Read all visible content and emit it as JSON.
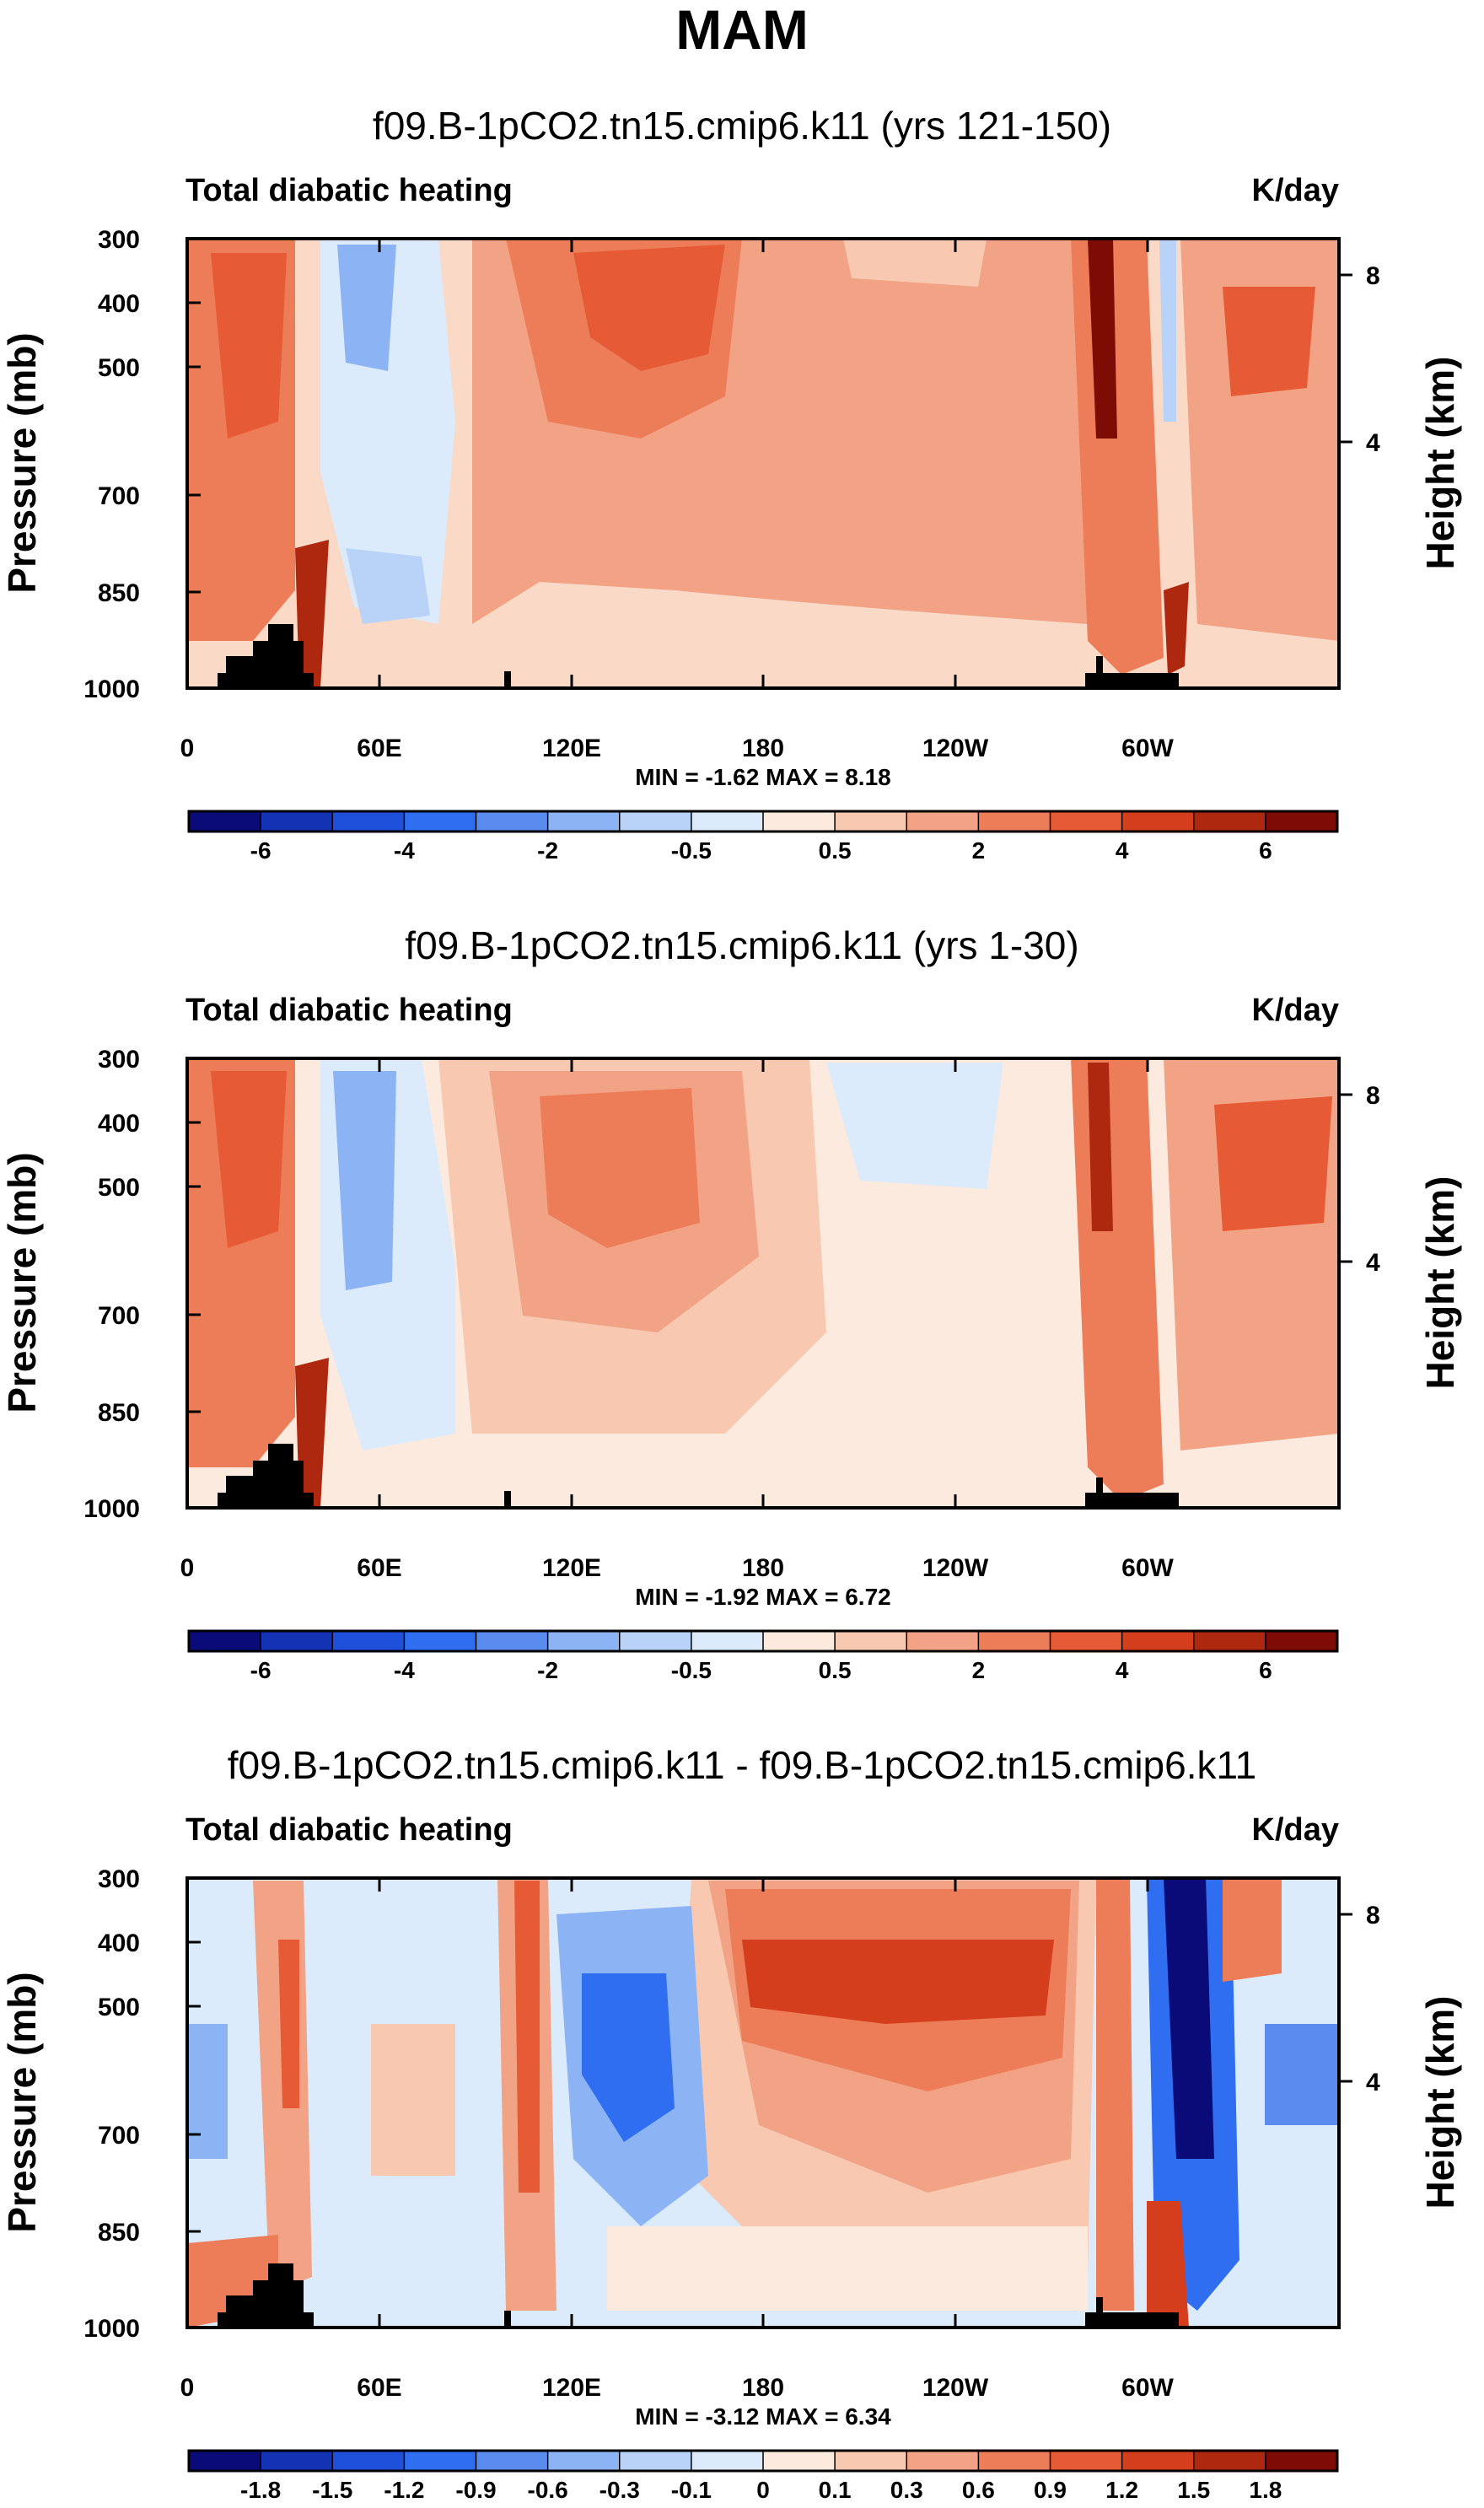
{
  "figure_title": "MAM",
  "chart_data": [
    {
      "type": "heatmap",
      "title": "f09.B-1pCO2.tn15.cmip6.k11 (yrs 121-150)",
      "left_label": "Total diabatic heating",
      "units": "K/day",
      "xlabel": "",
      "ylabel": "Pressure (mb)",
      "ylabel_right": "Height (km)",
      "x_ticks": [
        "0",
        "60E",
        "120E",
        "180",
        "120W",
        "60W"
      ],
      "y_ticks": [
        "300",
        "400",
        "500",
        "700",
        "850",
        "1000"
      ],
      "y_ticks_right": [
        "8",
        "4"
      ],
      "stats": "MIN =  -1.62  MAX =  8.18",
      "min": -1.62,
      "max": 8.18,
      "colorbar_labels": [
        "-6",
        "-4",
        "-2",
        "-0.5",
        "0.5",
        "2",
        "4",
        "6"
      ],
      "colors": [
        "#0a0a78",
        "#1432b4",
        "#1f50dc",
        "#2f6ef0",
        "#5a8cf0",
        "#8cb4f5",
        "#b9d3f8",
        "#dcebfb",
        "#fdeade",
        "#f8c8b0",
        "#f3a385",
        "#ec7d58",
        "#e65a35",
        "#d43e1c",
        "#ae2810",
        "#7d0c05"
      ]
    },
    {
      "type": "heatmap",
      "title": "f09.B-1pCO2.tn15.cmip6.k11 (yrs 1-30)",
      "left_label": "Total diabatic heating",
      "units": "K/day",
      "xlabel": "",
      "ylabel": "Pressure (mb)",
      "ylabel_right": "Height (km)",
      "x_ticks": [
        "0",
        "60E",
        "120E",
        "180",
        "120W",
        "60W"
      ],
      "y_ticks": [
        "300",
        "400",
        "500",
        "700",
        "850",
        "1000"
      ],
      "y_ticks_right": [
        "8",
        "4"
      ],
      "stats": "MIN =  -1.92  MAX =  6.72",
      "min": -1.92,
      "max": 6.72,
      "colorbar_labels": [
        "-6",
        "-4",
        "-2",
        "-0.5",
        "0.5",
        "2",
        "4",
        "6"
      ],
      "colors": [
        "#0a0a78",
        "#1432b4",
        "#1f50dc",
        "#2f6ef0",
        "#5a8cf0",
        "#8cb4f5",
        "#b9d3f8",
        "#dcebfb",
        "#fdeade",
        "#f8c8b0",
        "#f3a385",
        "#ec7d58",
        "#e65a35",
        "#d43e1c",
        "#ae2810",
        "#7d0c05"
      ]
    },
    {
      "type": "heatmap",
      "title": "f09.B-1pCO2.tn15.cmip6.k11 - f09.B-1pCO2.tn15.cmip6.k11",
      "left_label": "Total diabatic heating",
      "units": "K/day",
      "xlabel": "",
      "ylabel": "Pressure (mb)",
      "ylabel_right": "Height (km)",
      "x_ticks": [
        "0",
        "60E",
        "120E",
        "180",
        "120W",
        "60W"
      ],
      "y_ticks": [
        "300",
        "400",
        "500",
        "700",
        "850",
        "1000"
      ],
      "y_ticks_right": [
        "8",
        "4"
      ],
      "stats": "MIN =  -3.12  MAX =  6.34",
      "min": -3.12,
      "max": 6.34,
      "colorbar_labels": [
        "-1.8",
        "-1.5",
        "-1.2",
        "-0.9",
        "-0.6",
        "-0.3",
        "-0.1",
        "0",
        "0.1",
        "0.3",
        "0.6",
        "0.9",
        "1.2",
        "1.5",
        "1.8"
      ],
      "colors": [
        "#0a0a78",
        "#1432b4",
        "#1f50dc",
        "#2f6ef0",
        "#5a8cf0",
        "#8cb4f5",
        "#b9d3f8",
        "#dcebfb",
        "#fdeade",
        "#f8c8b0",
        "#f3a385",
        "#ec7d58",
        "#e65a35",
        "#d43e1c",
        "#ae2810",
        "#7d0c05"
      ]
    }
  ]
}
